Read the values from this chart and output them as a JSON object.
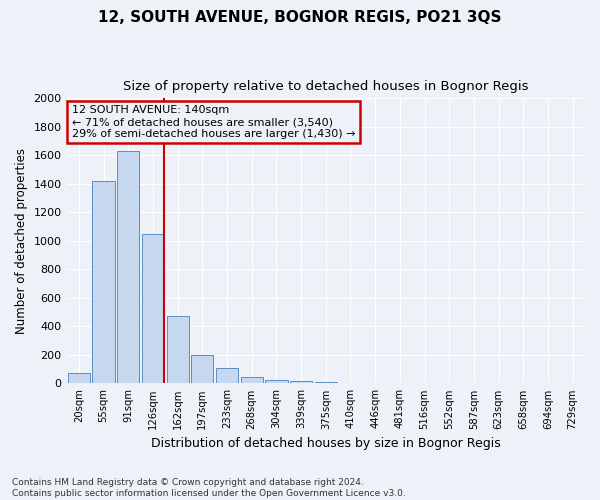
{
  "title1": "12, SOUTH AVENUE, BOGNOR REGIS, PO21 3QS",
  "title2": "Size of property relative to detached houses in Bognor Regis",
  "xlabel": "Distribution of detached houses by size in Bognor Regis",
  "ylabel": "Number of detached properties",
  "categories": [
    "20sqm",
    "55sqm",
    "91sqm",
    "126sqm",
    "162sqm",
    "197sqm",
    "233sqm",
    "268sqm",
    "304sqm",
    "339sqm",
    "375sqm",
    "410sqm",
    "446sqm",
    "481sqm",
    "516sqm",
    "552sqm",
    "587sqm",
    "623sqm",
    "658sqm",
    "694sqm",
    "729sqm"
  ],
  "values": [
    75,
    1420,
    1630,
    1050,
    470,
    200,
    110,
    45,
    25,
    15,
    10,
    0,
    0,
    0,
    0,
    0,
    0,
    0,
    0,
    0,
    0
  ],
  "bar_color": "#c5d8f0",
  "bar_edge_color": "#5b8ec4",
  "vline_x_index": 3,
  "vline_color": "#cc0000",
  "annotation_text": "12 SOUTH AVENUE: 140sqm\n← 71% of detached houses are smaller (3,540)\n29% of semi-detached houses are larger (1,430) →",
  "annotation_box_color": "#cc0000",
  "ylim": [
    0,
    2000
  ],
  "yticks": [
    0,
    200,
    400,
    600,
    800,
    1000,
    1200,
    1400,
    1600,
    1800,
    2000
  ],
  "footer": "Contains HM Land Registry data © Crown copyright and database right 2024.\nContains public sector information licensed under the Open Government Licence v3.0.",
  "background_color": "#eef2f8",
  "grid_color": "#ffffff",
  "title1_fontsize": 11,
  "title2_fontsize": 9.5,
  "xlabel_fontsize": 9,
  "ylabel_fontsize": 8.5,
  "footer_fontsize": 6.5,
  "annot_fontsize": 8
}
